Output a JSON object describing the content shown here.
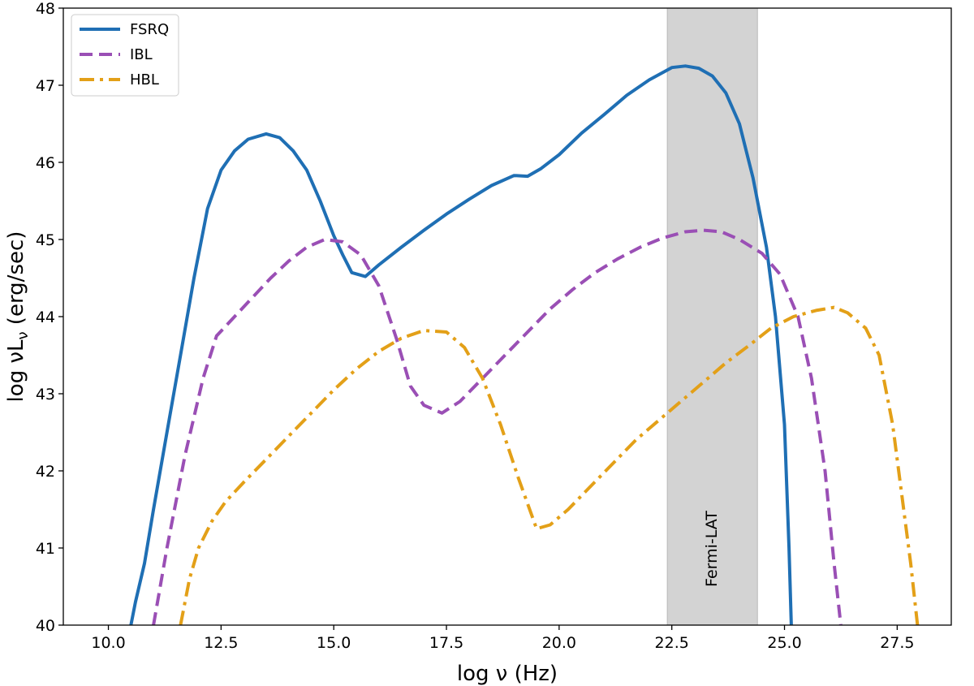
{
  "chart_data": {
    "type": "line",
    "xlabel": "log ν (Hz)",
    "ylabel": "log νL",
    "ylabel_subscript": "ν",
    "ylabel_suffix": " (erg/sec)",
    "xlim": [
      9.0,
      28.7
    ],
    "ylim": [
      40,
      48
    ],
    "xticks": [
      10.0,
      12.5,
      15.0,
      17.5,
      20.0,
      22.5,
      25.0,
      27.5
    ],
    "xtick_labels": [
      "10.0",
      "12.5",
      "15.0",
      "17.5",
      "20.0",
      "22.5",
      "25.0",
      "27.5"
    ],
    "yticks": [
      40,
      41,
      42,
      43,
      44,
      45,
      46,
      47,
      48
    ],
    "ytick_labels": [
      "40",
      "41",
      "42",
      "43",
      "44",
      "45",
      "46",
      "47",
      "48"
    ],
    "grid": false,
    "legend_position": "top-left",
    "band": {
      "label": "Fermi-LAT",
      "x_range": [
        22.4,
        24.4
      ],
      "color": "#d3d3d3"
    },
    "series": [
      {
        "name": "FSRQ",
        "color": "#1f6fb4",
        "style": "solid",
        "points": [
          [
            10.5,
            40.0
          ],
          [
            10.6,
            40.3
          ],
          [
            10.8,
            40.8
          ],
          [
            11.0,
            41.5
          ],
          [
            11.3,
            42.5
          ],
          [
            11.6,
            43.5
          ],
          [
            11.9,
            44.5
          ],
          [
            12.2,
            45.4
          ],
          [
            12.5,
            45.9
          ],
          [
            12.8,
            46.15
          ],
          [
            13.1,
            46.3
          ],
          [
            13.5,
            46.37
          ],
          [
            13.8,
            46.32
          ],
          [
            14.1,
            46.15
          ],
          [
            14.4,
            45.9
          ],
          [
            14.7,
            45.5
          ],
          [
            15.0,
            45.05
          ],
          [
            15.2,
            44.8
          ],
          [
            15.4,
            44.57
          ],
          [
            15.7,
            44.52
          ],
          [
            16.0,
            44.67
          ],
          [
            16.5,
            44.9
          ],
          [
            17.0,
            45.12
          ],
          [
            17.5,
            45.33
          ],
          [
            18.0,
            45.52
          ],
          [
            18.5,
            45.7
          ],
          [
            19.0,
            45.83
          ],
          [
            19.3,
            45.82
          ],
          [
            19.6,
            45.92
          ],
          [
            20.0,
            46.1
          ],
          [
            20.5,
            46.38
          ],
          [
            21.0,
            46.62
          ],
          [
            21.5,
            46.87
          ],
          [
            22.0,
            47.07
          ],
          [
            22.5,
            47.23
          ],
          [
            22.8,
            47.25
          ],
          [
            23.1,
            47.22
          ],
          [
            23.4,
            47.12
          ],
          [
            23.7,
            46.9
          ],
          [
            24.0,
            46.5
          ],
          [
            24.3,
            45.8
          ],
          [
            24.6,
            44.9
          ],
          [
            24.8,
            44.0
          ],
          [
            25.0,
            42.6
          ],
          [
            25.1,
            41.0
          ],
          [
            25.15,
            40.0
          ]
        ]
      },
      {
        "name": "IBL",
        "color": "#9a4fb5",
        "style": "dashed",
        "points": [
          [
            11.0,
            40.0
          ],
          [
            11.3,
            41.0
          ],
          [
            11.7,
            42.2
          ],
          [
            12.1,
            43.2
          ],
          [
            12.4,
            43.75
          ],
          [
            12.8,
            44.0
          ],
          [
            13.2,
            44.25
          ],
          [
            13.6,
            44.5
          ],
          [
            14.0,
            44.72
          ],
          [
            14.4,
            44.9
          ],
          [
            14.8,
            45.0
          ],
          [
            15.2,
            44.97
          ],
          [
            15.6,
            44.8
          ],
          [
            16.0,
            44.4
          ],
          [
            16.4,
            43.7
          ],
          [
            16.7,
            43.1
          ],
          [
            17.0,
            42.85
          ],
          [
            17.4,
            42.75
          ],
          [
            17.8,
            42.9
          ],
          [
            18.3,
            43.2
          ],
          [
            18.8,
            43.5
          ],
          [
            19.3,
            43.8
          ],
          [
            19.8,
            44.1
          ],
          [
            20.3,
            44.35
          ],
          [
            20.8,
            44.57
          ],
          [
            21.3,
            44.75
          ],
          [
            21.8,
            44.9
          ],
          [
            22.3,
            45.02
          ],
          [
            22.8,
            45.1
          ],
          [
            23.2,
            45.12
          ],
          [
            23.6,
            45.1
          ],
          [
            24.0,
            45.0
          ],
          [
            24.5,
            44.82
          ],
          [
            24.9,
            44.55
          ],
          [
            25.3,
            44.0
          ],
          [
            25.6,
            43.2
          ],
          [
            25.9,
            42.0
          ],
          [
            26.1,
            40.8
          ],
          [
            26.25,
            40.0
          ]
        ]
      },
      {
        "name": "HBL",
        "color": "#e3a018",
        "style": "dashdot",
        "points": [
          [
            11.6,
            40.0
          ],
          [
            11.8,
            40.6
          ],
          [
            12.0,
            41.0
          ],
          [
            12.3,
            41.35
          ],
          [
            12.6,
            41.6
          ],
          [
            13.0,
            41.85
          ],
          [
            13.5,
            42.15
          ],
          [
            14.0,
            42.45
          ],
          [
            14.5,
            42.75
          ],
          [
            15.0,
            43.05
          ],
          [
            15.5,
            43.32
          ],
          [
            16.0,
            43.55
          ],
          [
            16.5,
            43.72
          ],
          [
            17.0,
            43.82
          ],
          [
            17.5,
            43.8
          ],
          [
            17.9,
            43.6
          ],
          [
            18.3,
            43.2
          ],
          [
            18.7,
            42.6
          ],
          [
            19.1,
            41.9
          ],
          [
            19.5,
            41.25
          ],
          [
            19.8,
            41.3
          ],
          [
            20.2,
            41.5
          ],
          [
            20.7,
            41.8
          ],
          [
            21.2,
            42.1
          ],
          [
            21.7,
            42.4
          ],
          [
            22.2,
            42.65
          ],
          [
            22.7,
            42.9
          ],
          [
            23.2,
            43.15
          ],
          [
            23.7,
            43.4
          ],
          [
            24.2,
            43.62
          ],
          [
            24.7,
            43.85
          ],
          [
            25.2,
            44.0
          ],
          [
            25.7,
            44.08
          ],
          [
            26.1,
            44.12
          ],
          [
            26.4,
            44.05
          ],
          [
            26.8,
            43.85
          ],
          [
            27.1,
            43.5
          ],
          [
            27.4,
            42.6
          ],
          [
            27.6,
            41.7
          ],
          [
            27.8,
            40.8
          ],
          [
            27.95,
            40.0
          ]
        ]
      }
    ]
  }
}
